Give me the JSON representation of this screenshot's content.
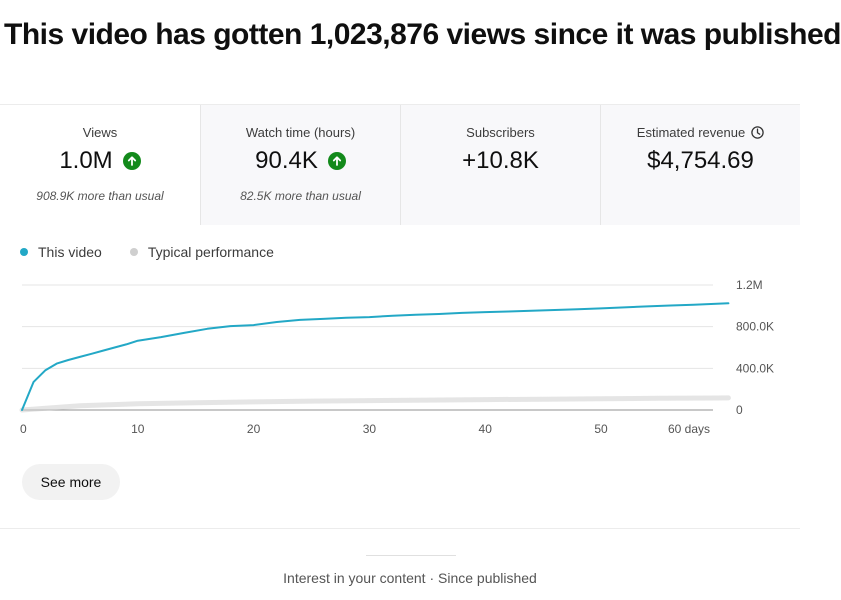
{
  "headline": "This video has gotten 1,023,876 views since it was published",
  "metrics": [
    {
      "label": "Views",
      "value": "1.0M",
      "trend_icon": "arrow-up-icon",
      "note": "908.9K more than usual"
    },
    {
      "label": "Watch time (hours)",
      "value": "90.4K",
      "trend_icon": "arrow-up-icon",
      "note": "82.5K more than usual"
    },
    {
      "label": "Subscribers",
      "value": "+10.8K",
      "note": ""
    },
    {
      "label": "Estimated revenue",
      "value": "$4,754.69",
      "note": "",
      "info_icon": "clock-icon"
    }
  ],
  "legend": {
    "this_video": "This video",
    "typical": "Typical performance"
  },
  "colors": {
    "this_video": "#23a8c6",
    "typical": "#cfcfcf",
    "trend_up": "#138a1b"
  },
  "chart_data": {
    "type": "line",
    "x_unit_label": "days",
    "xlim": [
      0,
      60
    ],
    "ylim": [
      0,
      1200000
    ],
    "x_ticks": [
      0,
      10,
      20,
      30,
      40,
      50,
      60
    ],
    "x_tick_labels": [
      "0",
      "10",
      "20",
      "30",
      "40",
      "50",
      "60 days"
    ],
    "y_ticks": [
      0,
      400000,
      800000,
      1200000
    ],
    "y_tick_labels": [
      "0",
      "400.0K",
      "800.0K",
      "1.2M"
    ],
    "series": [
      {
        "name": "This video",
        "x": [
          0,
          1,
          2,
          3,
          4,
          5,
          6,
          7,
          8,
          9,
          10,
          12,
          14,
          16,
          18,
          20,
          22,
          24,
          26,
          28,
          30,
          32,
          34,
          36,
          38,
          40,
          42,
          44,
          46,
          48,
          50,
          52,
          54,
          56,
          58,
          60,
          61
        ],
        "y": [
          0,
          270000,
          380000,
          445000,
          480000,
          510000,
          540000,
          570000,
          600000,
          630000,
          665000,
          700000,
          740000,
          780000,
          805000,
          815000,
          845000,
          865000,
          875000,
          885000,
          892000,
          905000,
          915000,
          922000,
          932000,
          940000,
          946000,
          952000,
          960000,
          968000,
          975000,
          985000,
          995000,
          1003000,
          1010000,
          1020000,
          1024000
        ]
      },
      {
        "name": "Typical performance",
        "x": [
          0,
          5,
          10,
          15,
          20,
          25,
          30,
          35,
          40,
          45,
          50,
          55,
          60,
          61
        ],
        "y": [
          0,
          40000,
          60000,
          70000,
          78000,
          85000,
          90000,
          95000,
          100000,
          104000,
          108000,
          112000,
          115000,
          116000
        ]
      }
    ]
  },
  "see_more": "See more",
  "footer": {
    "title": "Interest in your content · Since published"
  }
}
